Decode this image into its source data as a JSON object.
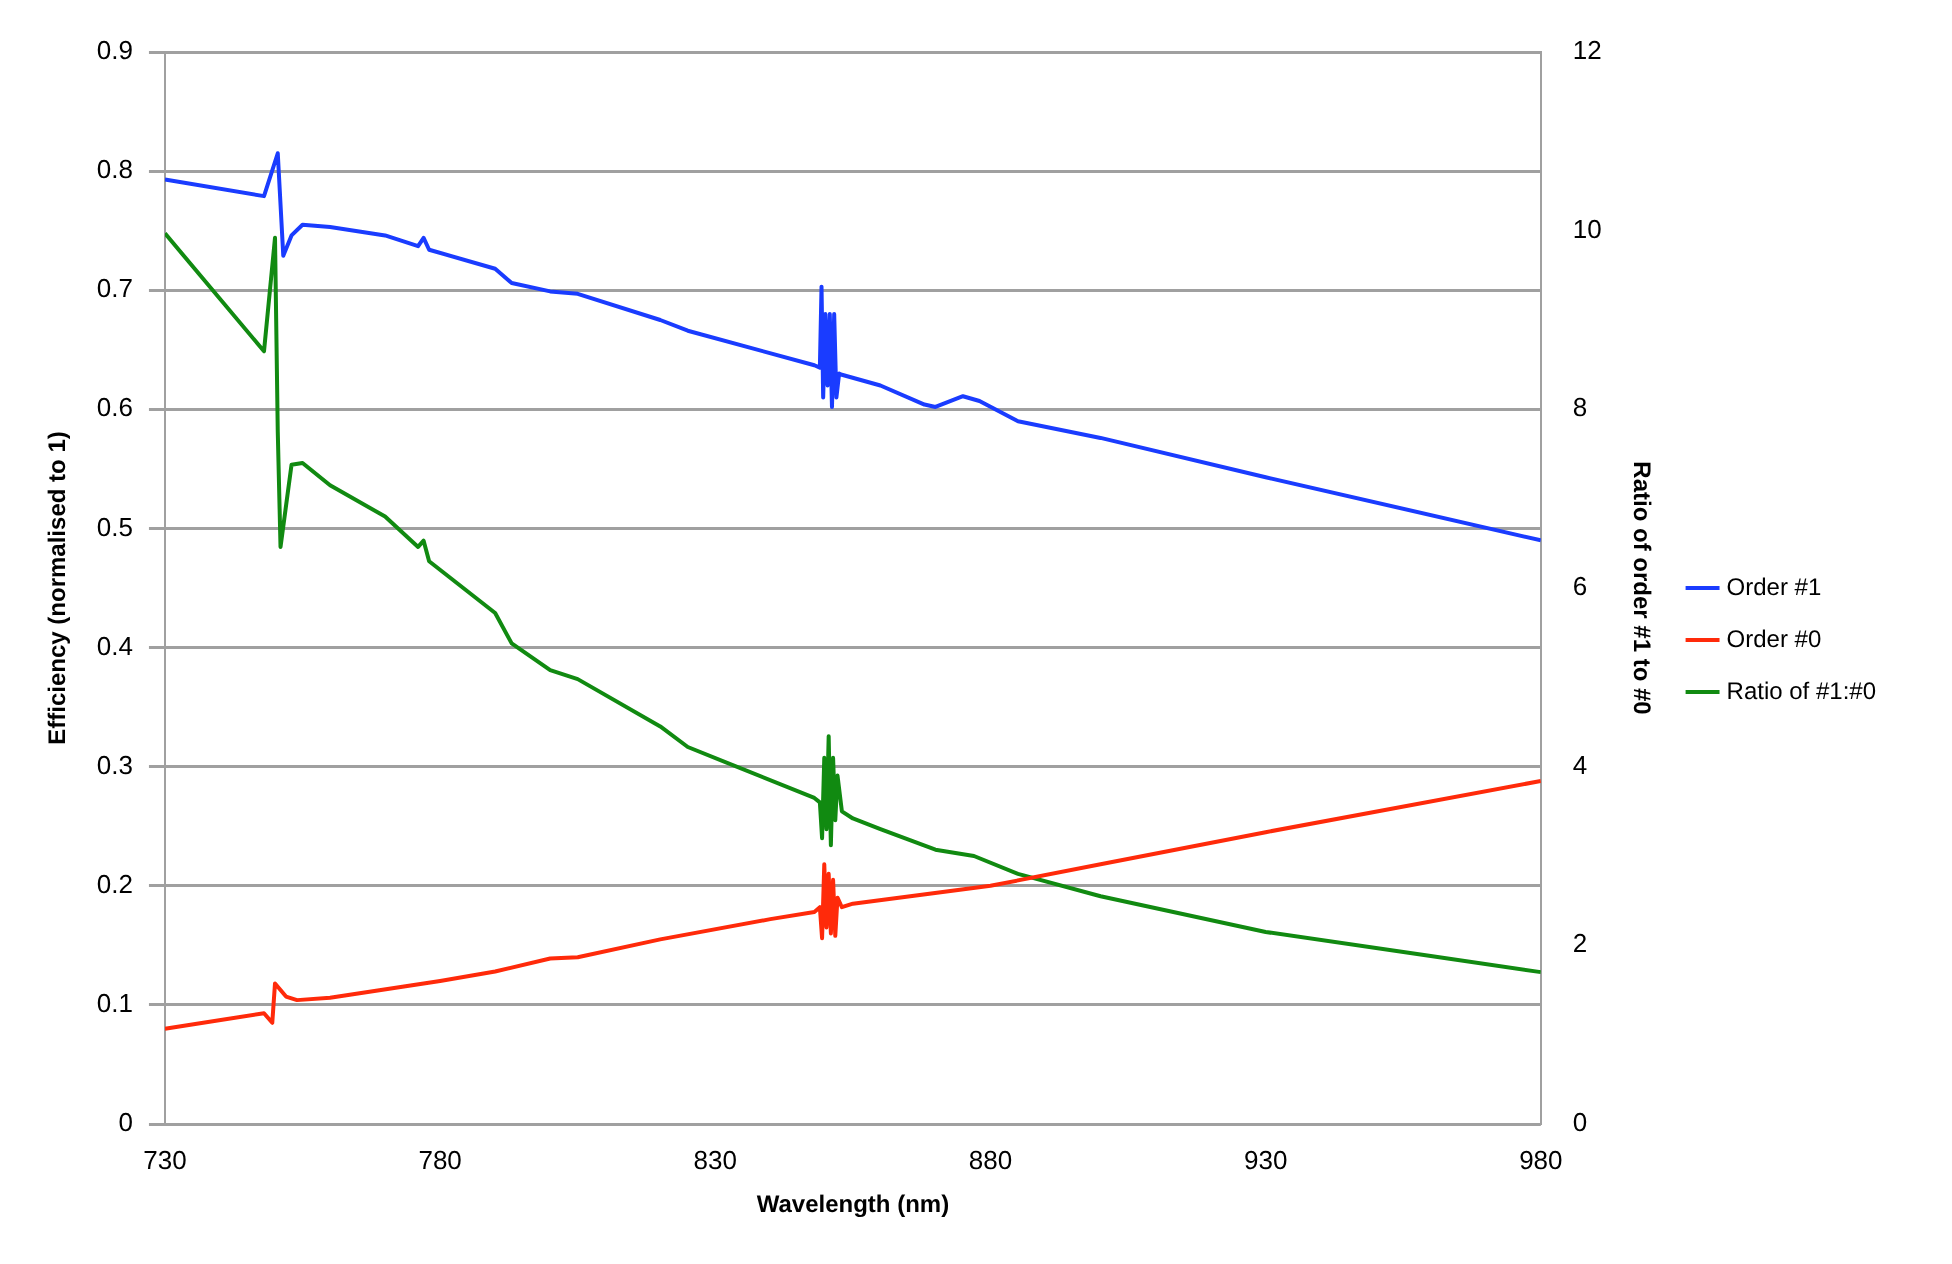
{
  "chart_data": {
    "type": "line",
    "xlabel": "Wavelength (nm)",
    "ylabel": "Efficiency (normalised to 1)",
    "y2label": "Ratio of order #1 to #0",
    "xlim": [
      730,
      980
    ],
    "xticks": [
      730,
      780,
      830,
      880,
      930,
      980
    ],
    "ylim": [
      0,
      0.9
    ],
    "yticks": [
      0,
      0.1,
      0.2,
      0.3,
      0.4,
      0.5,
      0.6,
      0.7,
      0.8,
      0.9
    ],
    "y2lim": [
      0,
      12
    ],
    "y2ticks": [
      0,
      2,
      4,
      6,
      8,
      10,
      12
    ],
    "grid": "y",
    "legend": "right",
    "marker": "none",
    "line_style": "solid",
    "series": [
      {
        "name": "Order #1",
        "color": "#1a3cff",
        "x": [
          730,
          748,
          750.5,
          751.5,
          753,
          755,
          760,
          770,
          776,
          777,
          778,
          790,
          793,
          800,
          805,
          820,
          825,
          848,
          849,
          849.3,
          849.6,
          850,
          850.4,
          850.8,
          851.2,
          851.6,
          852,
          852.5,
          853,
          860,
          868,
          870,
          875,
          878,
          885,
          900,
          930,
          980
        ],
        "values": [
          0.793,
          0.779,
          0.815,
          0.729,
          0.746,
          0.755,
          0.753,
          0.746,
          0.737,
          0.744,
          0.734,
          0.718,
          0.706,
          0.699,
          0.697,
          0.675,
          0.666,
          0.637,
          0.635,
          0.703,
          0.61,
          0.68,
          0.62,
          0.68,
          0.602,
          0.68,
          0.61,
          0.63,
          0.629,
          0.62,
          0.604,
          0.602,
          0.611,
          0.607,
          0.59,
          0.576,
          0.543,
          0.49
        ]
      },
      {
        "name": "Order #0",
        "color": "#ff2a0a",
        "x": [
          730,
          748,
          749.5,
          750,
          752,
          754,
          760,
          780,
          790,
          800,
          805,
          820,
          840,
          848,
          849,
          849.4,
          849.8,
          850.2,
          850.6,
          851,
          851.4,
          851.8,
          852.2,
          853,
          855,
          880,
          900,
          930,
          980
        ],
        "values": [
          0.08,
          0.093,
          0.085,
          0.118,
          0.107,
          0.104,
          0.106,
          0.12,
          0.128,
          0.139,
          0.14,
          0.155,
          0.172,
          0.178,
          0.182,
          0.156,
          0.218,
          0.165,
          0.21,
          0.16,
          0.205,
          0.158,
          0.19,
          0.182,
          0.185,
          0.2,
          0.218,
          0.245,
          0.288
        ]
      },
      {
        "name": "Ratio of #1:#0",
        "color": "#118a11",
        "axis": "y2",
        "x": [
          730,
          748,
          750,
          750.5,
          751,
          753,
          755,
          760,
          770,
          776,
          777,
          778,
          790,
          793,
          800,
          805,
          820,
          825,
          848,
          849,
          849.4,
          849.8,
          850.2,
          850.6,
          851,
          851.4,
          851.8,
          852.2,
          853,
          855,
          860,
          870,
          877,
          885,
          900,
          930,
          960,
          980
        ],
        "values": [
          9.97,
          8.65,
          9.92,
          7.75,
          6.46,
          7.38,
          7.4,
          7.15,
          6.8,
          6.46,
          6.53,
          6.3,
          5.72,
          5.38,
          5.08,
          4.98,
          4.45,
          4.22,
          3.65,
          3.6,
          3.2,
          4.1,
          3.3,
          4.34,
          3.12,
          4.1,
          3.4,
          3.9,
          3.5,
          3.42,
          3.3,
          3.07,
          3.0,
          2.8,
          2.55,
          2.15,
          1.88,
          1.7
        ]
      }
    ]
  }
}
